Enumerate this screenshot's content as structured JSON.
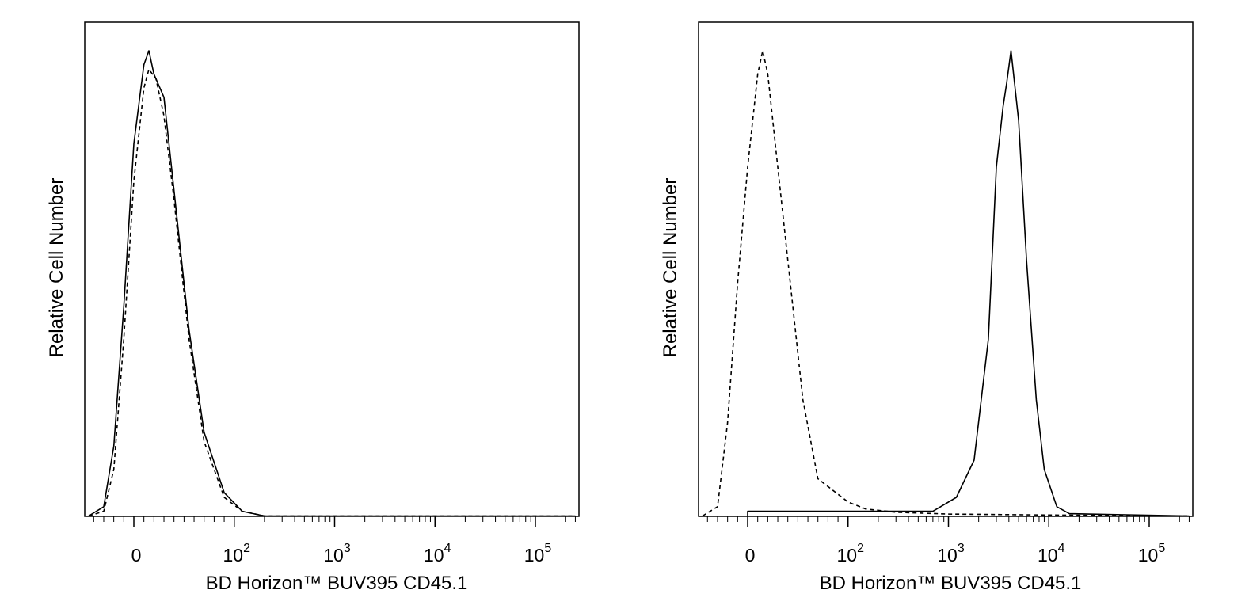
{
  "chart_data": [
    {
      "type": "histogram",
      "xlabel": "BD Horizon™ BUV395 CD45.1",
      "ylabel": "Relative Cell Number",
      "x_scale": "biexponential",
      "x_ticks": [
        {
          "value": 0,
          "base": "0",
          "exp": ""
        },
        {
          "value": 100,
          "base": "10",
          "exp": "2"
        },
        {
          "value": 1000,
          "base": "10",
          "exp": "3"
        },
        {
          "value": 10000,
          "base": "10",
          "exp": "4"
        },
        {
          "value": 100000,
          "base": "10",
          "exp": "5"
        }
      ],
      "series": [
        {
          "line": "solid",
          "points": [
            [
              -45,
              0
            ],
            [
              -30,
              0.02
            ],
            [
              -20,
              0.15
            ],
            [
              -10,
              0.45
            ],
            [
              0,
              0.8
            ],
            [
              10,
              0.97
            ],
            [
              15,
              1.0
            ],
            [
              20,
              0.95
            ],
            [
              30,
              0.9
            ],
            [
              40,
              0.7
            ],
            [
              55,
              0.4
            ],
            [
              70,
              0.18
            ],
            [
              90,
              0.05
            ],
            [
              120,
              0.01
            ],
            [
              200,
              0
            ],
            [
              250000,
              0
            ]
          ]
        },
        {
          "line": "dashed",
          "points": [
            [
              -45,
              0
            ],
            [
              -30,
              0.01
            ],
            [
              -20,
              0.1
            ],
            [
              -10,
              0.38
            ],
            [
              0,
              0.72
            ],
            [
              10,
              0.92
            ],
            [
              15,
              0.96
            ],
            [
              22,
              0.94
            ],
            [
              30,
              0.86
            ],
            [
              40,
              0.68
            ],
            [
              55,
              0.38
            ],
            [
              70,
              0.16
            ],
            [
              90,
              0.04
            ],
            [
              120,
              0.01
            ],
            [
              200,
              0
            ],
            [
              250000,
              0
            ]
          ]
        }
      ]
    },
    {
      "type": "histogram",
      "xlabel": "BD Horizon™ BUV395 CD45.1",
      "ylabel": "Relative Cell Number",
      "x_scale": "biexponential",
      "x_ticks": [
        {
          "value": 0,
          "base": "0",
          "exp": ""
        },
        {
          "value": 100,
          "base": "10",
          "exp": "2"
        },
        {
          "value": 1000,
          "base": "10",
          "exp": "3"
        },
        {
          "value": 10000,
          "base": "10",
          "exp": "4"
        },
        {
          "value": 100000,
          "base": "10",
          "exp": "5"
        }
      ],
      "series": [
        {
          "line": "dashed",
          "points": [
            [
              -45,
              0
            ],
            [
              -30,
              0.02
            ],
            [
              -20,
              0.2
            ],
            [
              -10,
              0.5
            ],
            [
              0,
              0.75
            ],
            [
              10,
              0.95
            ],
            [
              15,
              1.0
            ],
            [
              20,
              0.95
            ],
            [
              30,
              0.75
            ],
            [
              40,
              0.55
            ],
            [
              55,
              0.25
            ],
            [
              70,
              0.08
            ],
            [
              100,
              0.03
            ],
            [
              150,
              0.015
            ],
            [
              300,
              0.008
            ],
            [
              1000,
              0.004
            ],
            [
              10000,
              0.002
            ],
            [
              250000,
              0
            ]
          ]
        },
        {
          "line": "solid",
          "points": [
            [
              0,
              0
            ],
            [
              0,
              0.01
            ],
            [
              200,
              0.01
            ],
            [
              700,
              0.01
            ],
            [
              1200,
              0.04
            ],
            [
              1800,
              0.12
            ],
            [
              2500,
              0.38
            ],
            [
              3000,
              0.75
            ],
            [
              3500,
              0.88
            ],
            [
              3800,
              0.93
            ],
            [
              4200,
              1.0
            ],
            [
              5000,
              0.85
            ],
            [
              6000,
              0.55
            ],
            [
              7500,
              0.25
            ],
            [
              9000,
              0.1
            ],
            [
              12000,
              0.02
            ],
            [
              16000,
              0.005
            ],
            [
              250000,
              0
            ]
          ]
        }
      ]
    }
  ]
}
